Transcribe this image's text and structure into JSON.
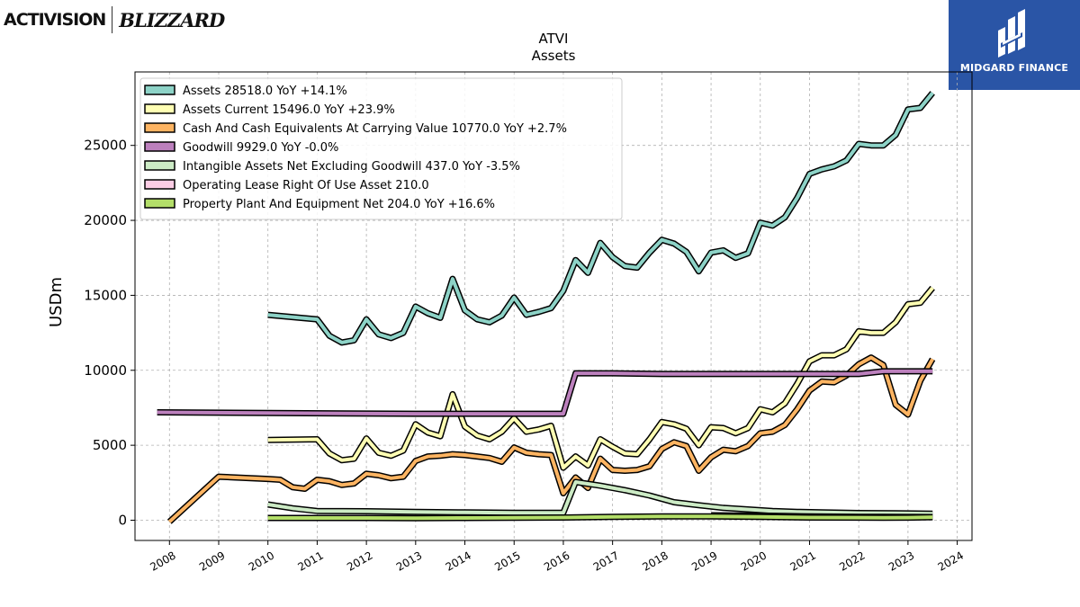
{
  "header": {
    "left_logo": {
      "activision_text": "ACTIVISION",
      "blizzard_text": "BLIZZARD"
    },
    "right_logo": {
      "text": "MIDGARD FINANCE",
      "bg_color": "#2a55a6"
    }
  },
  "chart_data": {
    "type": "line",
    "title": "ATVI",
    "subtitle": "Assets",
    "ylabel": "USDm",
    "xlabel": "",
    "xlim": [
      2007.3,
      2024.3
    ],
    "ylim": [
      -1350,
      29900
    ],
    "x_ticks": [
      "2008",
      "2009",
      "2010",
      "2011",
      "2012",
      "2013",
      "2014",
      "2015",
      "2016",
      "2017",
      "2018",
      "2019",
      "2020",
      "2021",
      "2022",
      "2023",
      "2024"
    ],
    "y_ticks": [
      "0",
      "5000",
      "10000",
      "15000",
      "20000",
      "25000"
    ],
    "grid": true,
    "legend_position": "upper-left",
    "series": [
      {
        "name": "Assets",
        "legend": "Assets  28518.0 YoY +14.1%",
        "color": "#8dd3c7",
        "points": [
          [
            2010.0,
            13700
          ],
          [
            2011.0,
            13400
          ],
          [
            2011.25,
            12300
          ],
          [
            2011.5,
            11850
          ],
          [
            2011.75,
            12000
          ],
          [
            2012.0,
            13400
          ],
          [
            2012.25,
            12400
          ],
          [
            2012.5,
            12150
          ],
          [
            2012.75,
            12500
          ],
          [
            2013.0,
            14250
          ],
          [
            2013.25,
            13800
          ],
          [
            2013.5,
            13500
          ],
          [
            2013.75,
            16100
          ],
          [
            2014.0,
            14000
          ],
          [
            2014.25,
            13400
          ],
          [
            2014.5,
            13200
          ],
          [
            2014.75,
            13650
          ],
          [
            2015.0,
            14850
          ],
          [
            2015.25,
            13700
          ],
          [
            2015.5,
            13900
          ],
          [
            2015.75,
            14150
          ],
          [
            2016.0,
            15300
          ],
          [
            2016.25,
            17350
          ],
          [
            2016.5,
            16500
          ],
          [
            2016.75,
            18500
          ],
          [
            2017.0,
            17550
          ],
          [
            2017.25,
            16950
          ],
          [
            2017.5,
            16850
          ],
          [
            2017.75,
            17850
          ],
          [
            2018.0,
            18700
          ],
          [
            2018.25,
            18450
          ],
          [
            2018.5,
            17900
          ],
          [
            2018.75,
            16600
          ],
          [
            2019.0,
            17850
          ],
          [
            2019.25,
            18000
          ],
          [
            2019.5,
            17500
          ],
          [
            2019.75,
            17800
          ],
          [
            2020.0,
            19850
          ],
          [
            2020.25,
            19650
          ],
          [
            2020.5,
            20200
          ],
          [
            2020.75,
            21500
          ],
          [
            2021.0,
            23100
          ],
          [
            2021.25,
            23400
          ],
          [
            2021.5,
            23600
          ],
          [
            2021.75,
            24000
          ],
          [
            2022.0,
            25100
          ],
          [
            2022.25,
            25000
          ],
          [
            2022.5,
            25000
          ],
          [
            2022.75,
            25700
          ],
          [
            2023.0,
            27400
          ],
          [
            2023.25,
            27500
          ],
          [
            2023.5,
            28500
          ]
        ]
      },
      {
        "name": "Assets Current",
        "legend": "Assets Current  15496.0 YoY +23.9%",
        "color": "#ffffb3",
        "points": [
          [
            2010.0,
            5350
          ],
          [
            2011.0,
            5400
          ],
          [
            2011.25,
            4450
          ],
          [
            2011.5,
            4000
          ],
          [
            2011.75,
            4100
          ],
          [
            2012.0,
            5450
          ],
          [
            2012.25,
            4500
          ],
          [
            2012.5,
            4300
          ],
          [
            2012.75,
            4650
          ],
          [
            2013.0,
            6400
          ],
          [
            2013.25,
            5850
          ],
          [
            2013.5,
            5600
          ],
          [
            2013.75,
            8400
          ],
          [
            2014.0,
            6250
          ],
          [
            2014.25,
            5650
          ],
          [
            2014.5,
            5400
          ],
          [
            2014.75,
            5900
          ],
          [
            2015.0,
            6800
          ],
          [
            2015.25,
            5900
          ],
          [
            2015.5,
            6050
          ],
          [
            2015.75,
            6300
          ],
          [
            2016.0,
            3500
          ],
          [
            2016.25,
            4250
          ],
          [
            2016.5,
            3650
          ],
          [
            2016.75,
            5400
          ],
          [
            2017.0,
            4900
          ],
          [
            2017.25,
            4450
          ],
          [
            2017.5,
            4400
          ],
          [
            2017.75,
            5400
          ],
          [
            2018.0,
            6550
          ],
          [
            2018.25,
            6400
          ],
          [
            2018.5,
            6100
          ],
          [
            2018.75,
            5000
          ],
          [
            2019.0,
            6200
          ],
          [
            2019.25,
            6150
          ],
          [
            2019.5,
            5800
          ],
          [
            2019.75,
            6150
          ],
          [
            2020.0,
            7400
          ],
          [
            2020.25,
            7200
          ],
          [
            2020.5,
            7800
          ],
          [
            2020.75,
            9100
          ],
          [
            2021.0,
            10600
          ],
          [
            2021.25,
            11000
          ],
          [
            2021.5,
            11000
          ],
          [
            2021.75,
            11400
          ],
          [
            2022.0,
            12600
          ],
          [
            2022.25,
            12500
          ],
          [
            2022.5,
            12500
          ],
          [
            2022.75,
            13200
          ],
          [
            2023.0,
            14400
          ],
          [
            2023.25,
            14500
          ],
          [
            2023.5,
            15500
          ]
        ]
      },
      {
        "name": "Cash And Cash Equivalents At Carrying Value",
        "legend": "Cash And Cash Equivalents At Carrying Value  10770.0 YoY +2.7%",
        "color": "#fdb462",
        "points": [
          [
            2008.0,
            -100
          ],
          [
            2009.0,
            2900
          ],
          [
            2010.0,
            2750
          ],
          [
            2010.25,
            2700
          ],
          [
            2010.5,
            2200
          ],
          [
            2010.75,
            2100
          ],
          [
            2011.0,
            2700
          ],
          [
            2011.25,
            2600
          ],
          [
            2011.5,
            2350
          ],
          [
            2011.75,
            2450
          ],
          [
            2012.0,
            3100
          ],
          [
            2012.25,
            3000
          ],
          [
            2012.5,
            2800
          ],
          [
            2012.75,
            2900
          ],
          [
            2013.0,
            3950
          ],
          [
            2013.25,
            4250
          ],
          [
            2013.5,
            4300
          ],
          [
            2013.75,
            4400
          ],
          [
            2014.0,
            4350
          ],
          [
            2014.25,
            4250
          ],
          [
            2014.5,
            4150
          ],
          [
            2014.75,
            3900
          ],
          [
            2015.0,
            4850
          ],
          [
            2015.25,
            4500
          ],
          [
            2015.5,
            4400
          ],
          [
            2015.75,
            4350
          ],
          [
            2016.0,
            1800
          ],
          [
            2016.25,
            2850
          ],
          [
            2016.5,
            2150
          ],
          [
            2016.75,
            4100
          ],
          [
            2017.0,
            3350
          ],
          [
            2017.25,
            3300
          ],
          [
            2017.5,
            3350
          ],
          [
            2017.75,
            3600
          ],
          [
            2018.0,
            4750
          ],
          [
            2018.25,
            5200
          ],
          [
            2018.5,
            4950
          ],
          [
            2018.75,
            3300
          ],
          [
            2019.0,
            4200
          ],
          [
            2019.25,
            4700
          ],
          [
            2019.5,
            4600
          ],
          [
            2019.75,
            4950
          ],
          [
            2020.0,
            5800
          ],
          [
            2020.25,
            5900
          ],
          [
            2020.5,
            6350
          ],
          [
            2020.75,
            7400
          ],
          [
            2021.0,
            8650
          ],
          [
            2021.25,
            9250
          ],
          [
            2021.5,
            9200
          ],
          [
            2021.75,
            9650
          ],
          [
            2022.0,
            10400
          ],
          [
            2022.25,
            10850
          ],
          [
            2022.5,
            10350
          ],
          [
            2022.75,
            7700
          ],
          [
            2023.0,
            7050
          ],
          [
            2023.25,
            9300
          ],
          [
            2023.5,
            10750
          ]
        ]
      },
      {
        "name": "Goodwill",
        "legend": "Goodwill  9929.0 YoY -0.0%",
        "color": "#bc80bd",
        "points": [
          [
            2007.75,
            7200
          ],
          [
            2010.0,
            7150
          ],
          [
            2013.0,
            7100
          ],
          [
            2016.0,
            7100
          ],
          [
            2016.25,
            9800
          ],
          [
            2017.0,
            9800
          ],
          [
            2018.0,
            9750
          ],
          [
            2019.0,
            9750
          ],
          [
            2020.0,
            9750
          ],
          [
            2021.0,
            9750
          ],
          [
            2022.0,
            9750
          ],
          [
            2022.5,
            9930
          ],
          [
            2023.0,
            9930
          ],
          [
            2023.5,
            9930
          ]
        ]
      },
      {
        "name": "Intangible Assets Net Excluding Goodwill",
        "legend": "Intangible Assets Net Excluding Goodwill  437.0 YoY -3.5%",
        "color": "#ccebc5",
        "points": [
          [
            2010.0,
            1050
          ],
          [
            2010.5,
            800
          ],
          [
            2011.0,
            620
          ],
          [
            2012.0,
            600
          ],
          [
            2013.0,
            560
          ],
          [
            2014.0,
            520
          ],
          [
            2015.0,
            500
          ],
          [
            2016.0,
            500
          ],
          [
            2016.25,
            2550
          ],
          [
            2016.75,
            2300
          ],
          [
            2017.25,
            2000
          ],
          [
            2017.75,
            1650
          ],
          [
            2018.25,
            1200
          ],
          [
            2018.75,
            1000
          ],
          [
            2019.25,
            820
          ],
          [
            2019.75,
            720
          ],
          [
            2020.25,
            620
          ],
          [
            2020.75,
            560
          ],
          [
            2021.25,
            520
          ],
          [
            2022.0,
            480
          ],
          [
            2022.75,
            460
          ],
          [
            2023.5,
            437
          ]
        ]
      },
      {
        "name": "Operating Lease Right Of Use Asset",
        "legend": "Operating Lease Right Of Use Asset  210.0",
        "color": "#fccde5",
        "points": [
          [
            2019.0,
            330
          ],
          [
            2019.5,
            320
          ],
          [
            2020.0,
            300
          ],
          [
            2020.5,
            280
          ],
          [
            2021.0,
            250
          ],
          [
            2021.5,
            240
          ],
          [
            2022.0,
            230
          ],
          [
            2022.5,
            220
          ],
          [
            2023.0,
            215
          ],
          [
            2023.5,
            210
          ]
        ]
      },
      {
        "name": "Property Plant And Equipment Net",
        "legend": "Property Plant And Equipment Net  204.0 YoY +16.6%",
        "color": "#b3de69",
        "points": [
          [
            2010.0,
            150
          ],
          [
            2011.0,
            150
          ],
          [
            2012.0,
            150
          ],
          [
            2013.0,
            140
          ],
          [
            2014.0,
            150
          ],
          [
            2015.0,
            160
          ],
          [
            2016.0,
            180
          ],
          [
            2017.0,
            230
          ],
          [
            2018.0,
            250
          ],
          [
            2019.0,
            250
          ],
          [
            2020.0,
            220
          ],
          [
            2021.0,
            180
          ],
          [
            2022.0,
            175
          ],
          [
            2022.5,
            170
          ],
          [
            2023.0,
            175
          ],
          [
            2023.5,
            204
          ]
        ]
      }
    ]
  }
}
